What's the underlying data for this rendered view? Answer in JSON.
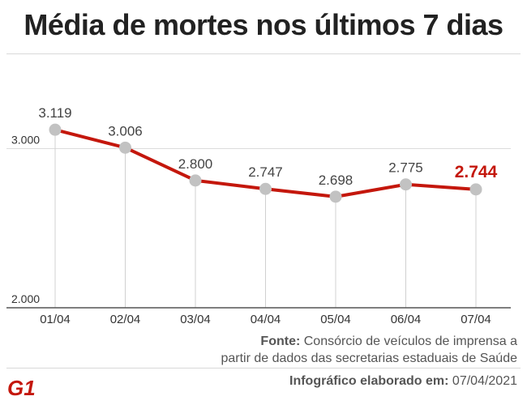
{
  "title": "Média de mortes nos últimos 7 dias",
  "source": {
    "label": "Fonte:",
    "line1": "Consórcio de veículos de imprensa a",
    "line2": "partir de dados das secretarias estaduais de Saúde"
  },
  "credit": {
    "label": "Infográfico elaborado em:",
    "date": "07/04/2021"
  },
  "logo": {
    "text": "G1",
    "color": "#c4170c"
  },
  "colors": {
    "line": "#c4170c",
    "marker": "#c2c2c2",
    "highlight": "#c4170c",
    "axis": "#555555"
  },
  "chart_data": {
    "type": "line",
    "title": "Média de mortes nos últimos 7 dias",
    "categories": [
      "01/04",
      "02/04",
      "03/04",
      "04/04",
      "05/04",
      "06/04",
      "07/04"
    ],
    "values": [
      3119,
      3006,
      2800,
      2747,
      2698,
      2775,
      2744
    ],
    "value_labels": [
      "3.119",
      "3.006",
      "2.800",
      "2.747",
      "2.698",
      "2.775",
      "2.744"
    ],
    "y_ticks": [
      2000,
      3000
    ],
    "y_tick_labels": [
      "2.000",
      "3.000"
    ],
    "ylim": [
      2000,
      3130
    ],
    "highlight_index": 6,
    "grid": true
  }
}
